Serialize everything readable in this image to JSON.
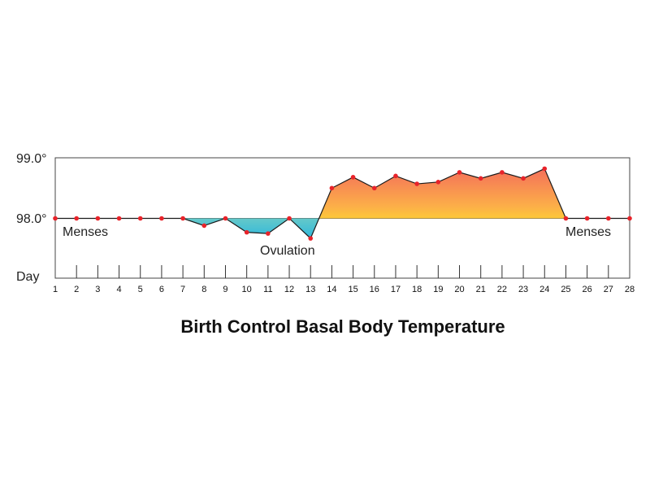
{
  "chart_data": {
    "type": "line",
    "title": "Birth Control Basal Body Temperature",
    "xlabel": "Day",
    "ylabel": "",
    "x": [
      1,
      2,
      3,
      4,
      5,
      6,
      7,
      8,
      9,
      10,
      11,
      12,
      13,
      14,
      15,
      16,
      17,
      18,
      19,
      20,
      21,
      22,
      23,
      24,
      25,
      26,
      27,
      28
    ],
    "series": [
      {
        "values": [
          98.0,
          98.0,
          98.0,
          98.0,
          98.0,
          98.0,
          98.0,
          97.88,
          98.0,
          97.77,
          97.75,
          98.0,
          97.67,
          98.5,
          98.68,
          98.5,
          98.7,
          98.57,
          98.6,
          98.76,
          98.66,
          98.76,
          98.66,
          98.82,
          98.0,
          98.0,
          98.0,
          98.0
        ]
      }
    ],
    "y_ticks": [
      "98.0°",
      "99.0°"
    ],
    "ylim": [
      98.0,
      99.0
    ],
    "baseline": 98.0,
    "annotations": [
      {
        "text": "Menses",
        "day": 1
      },
      {
        "text": "Ovulation",
        "day": 13
      },
      {
        "text": "Menses",
        "day": 25
      }
    ],
    "colors": {
      "point": "#e8232a",
      "line": "#1a1a1a",
      "above_top": "#f4705a",
      "above_bottom": "#fff21e",
      "below_top": "#d8f0a0",
      "below_bottom": "#30b8dc"
    }
  }
}
